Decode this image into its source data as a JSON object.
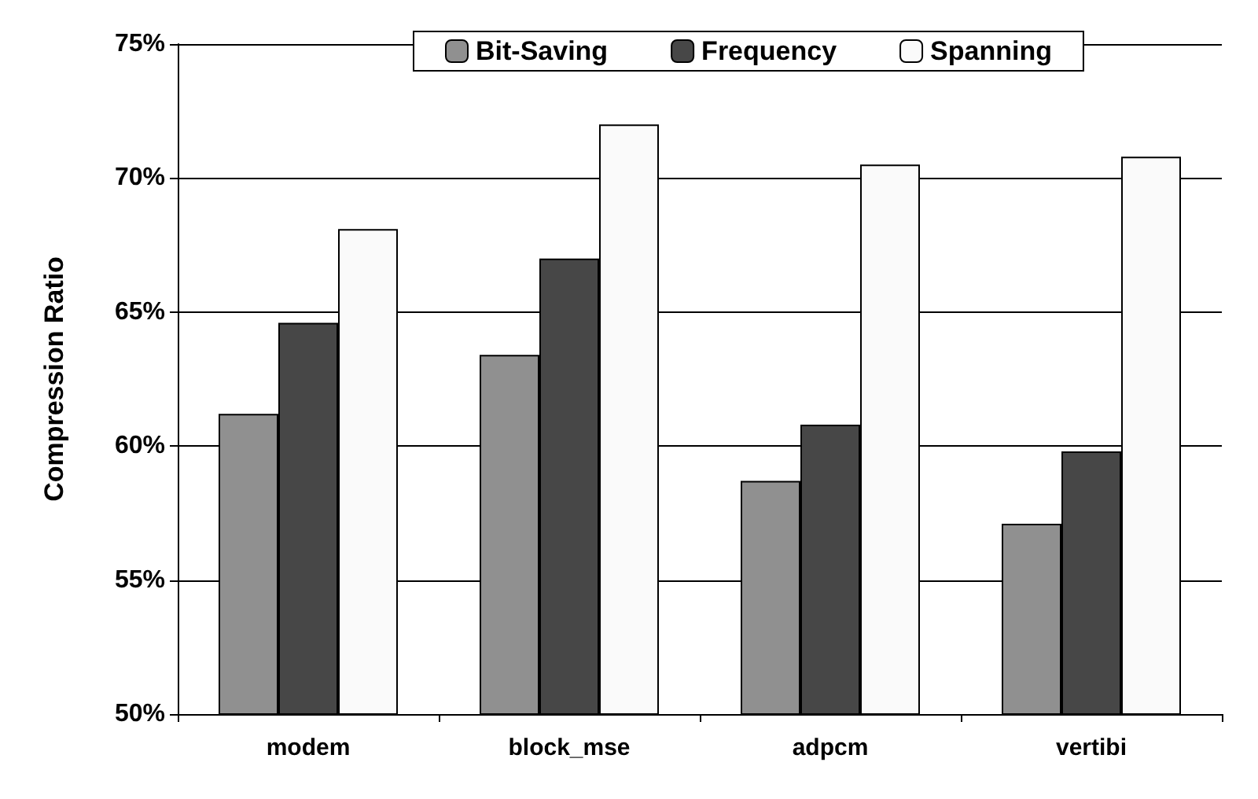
{
  "chart_data": {
    "type": "bar",
    "ylabel": "Compression Ratio",
    "categories": [
      "modem",
      "block_mse",
      "adpcm",
      "vertibi"
    ],
    "series": [
      {
        "name": "Bit-Saving",
        "color": "#909090",
        "values": [
          61.2,
          63.4,
          58.7,
          57.1
        ]
      },
      {
        "name": "Frequency",
        "color": "#474747",
        "values": [
          64.6,
          67.0,
          60.8,
          59.8
        ]
      },
      {
        "name": "Spanning",
        "color": "#fafafa",
        "values": [
          68.1,
          72.0,
          70.5,
          70.8
        ]
      }
    ],
    "ylim": [
      50,
      75
    ],
    "yticks": [
      {
        "value": 50,
        "label": "50%"
      },
      {
        "value": 55,
        "label": "55%"
      },
      {
        "value": 60,
        "label": "60%"
      },
      {
        "value": 65,
        "label": "65%"
      },
      {
        "value": 70,
        "label": "70%"
      },
      {
        "value": 75,
        "label": "75%"
      }
    ],
    "grid": "y",
    "legend": "top"
  }
}
